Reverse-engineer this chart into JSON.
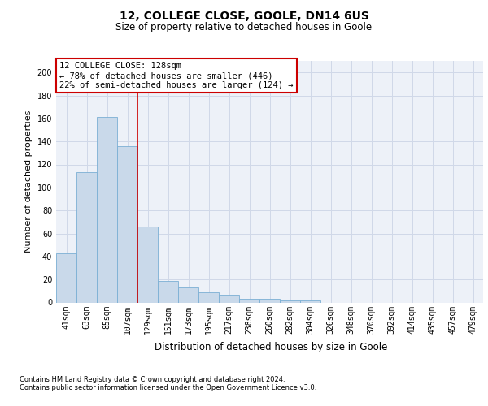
{
  "title": "12, COLLEGE CLOSE, GOOLE, DN14 6US",
  "subtitle": "Size of property relative to detached houses in Goole",
  "xlabel": "Distribution of detached houses by size in Goole",
  "ylabel": "Number of detached properties",
  "bar_values": [
    43,
    113,
    161,
    136,
    66,
    19,
    13,
    9,
    7,
    3,
    3,
    2,
    2,
    0,
    0,
    0,
    0,
    0,
    0,
    0,
    0
  ],
  "bar_labels": [
    "41sqm",
    "63sqm",
    "85sqm",
    "107sqm",
    "129sqm",
    "151sqm",
    "173sqm",
    "195sqm",
    "217sqm",
    "238sqm",
    "260sqm",
    "282sqm",
    "304sqm",
    "326sqm",
    "348sqm",
    "370sqm",
    "392sqm",
    "414sqm",
    "435sqm",
    "457sqm",
    "479sqm"
  ],
  "bar_color": "#c9d9ea",
  "bar_edge_color": "#7bafd4",
  "ylim": [
    0,
    210
  ],
  "yticks": [
    0,
    20,
    40,
    60,
    80,
    100,
    120,
    140,
    160,
    180,
    200
  ],
  "property_label": "12 COLLEGE CLOSE: 128sqm",
  "annotation_line1": "← 78% of detached houses are smaller (446)",
  "annotation_line2": "22% of semi-detached houses are larger (124) →",
  "annotation_box_edgecolor": "#cc0000",
  "vline_color": "#cc0000",
  "vline_position": 3.5,
  "grid_color": "#d0d8e8",
  "footnote1": "Contains HM Land Registry data © Crown copyright and database right 2024.",
  "footnote2": "Contains public sector information licensed under the Open Government Licence v3.0.",
  "background_color": "#edf1f8",
  "title_fontsize": 10,
  "subtitle_fontsize": 8.5,
  "xlabel_fontsize": 8.5,
  "ylabel_fontsize": 8,
  "tick_fontsize": 7,
  "annotation_fontsize": 7.5,
  "footnote_fontsize": 6
}
